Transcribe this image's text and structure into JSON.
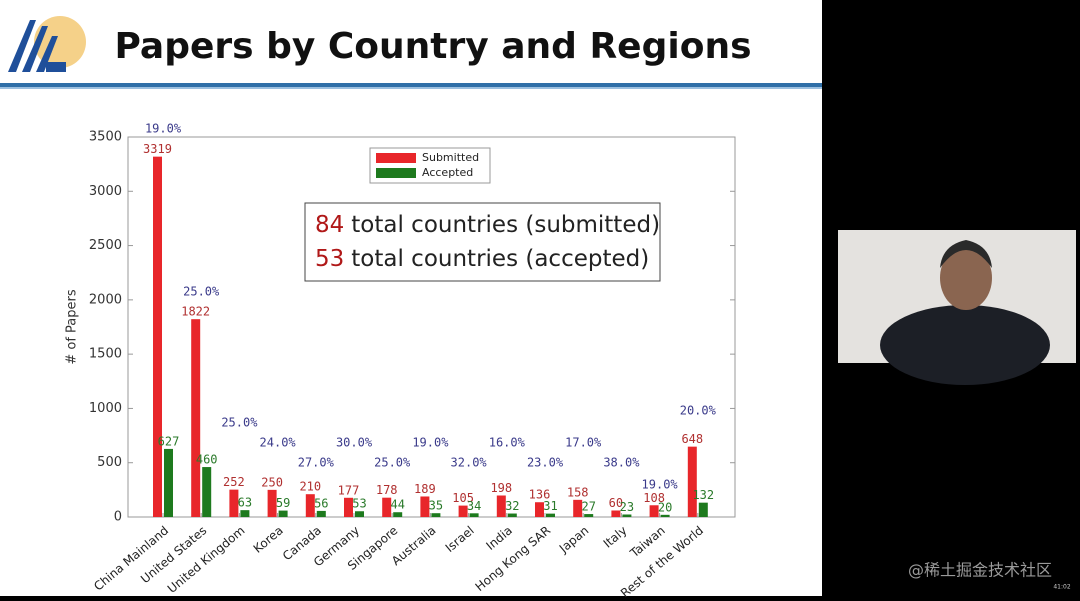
{
  "chart_data": {
    "type": "bar",
    "title": "Papers by Country and Regions",
    "y_label": "# of Papers",
    "categories": [
      "China Mainland",
      "United States",
      "United Kingdom",
      "Korea",
      "Canada",
      "Germany",
      "Singapore",
      "Australia",
      "Israel",
      "India",
      "Hong Kong SAR",
      "Japan",
      "Italy",
      "Taiwan",
      "Rest of the World"
    ],
    "series": [
      {
        "name": "Submitted",
        "color": "#e8262a",
        "label_color": "#b03030",
        "values": [
          3319,
          1822,
          252,
          250,
          210,
          177,
          178,
          189,
          105,
          198,
          136,
          158,
          60,
          108,
          648
        ]
      },
      {
        "name": "Accepted",
        "color": "#1e7a1e",
        "label_color": "#2a7a2a",
        "values": [
          627,
          460,
          63,
          59,
          56,
          53,
          44,
          35,
          34,
          32,
          31,
          27,
          23,
          20,
          132
        ]
      }
    ],
    "acceptance_rate": {
      "color": "#3a3a8a",
      "values": [
        19,
        25,
        25,
        24,
        27,
        30,
        25,
        19,
        32,
        16,
        23,
        17,
        38,
        19,
        20
      ],
      "value_labels": [
        "19.0%",
        "25.0%",
        "25.0%",
        "24.0%",
        "27.0%",
        "30.0%",
        "25.0%",
        "19.0%",
        "32.0%",
        "16.0%",
        "23.0%",
        "17.0%",
        "38.0%",
        "19.0%",
        "20.0%"
      ]
    },
    "annotations": [
      {
        "count": 84,
        "text": "total countries (submitted)"
      },
      {
        "count": 53,
        "text": "total countries (accepted)"
      }
    ],
    "ylim": [
      0,
      3500
    ],
    "yticks": [
      0,
      500,
      1000,
      1500,
      2000,
      2500,
      3000,
      3500
    ],
    "legend": "top-center"
  },
  "watermark": "@稀土掘金技术社区",
  "timestamp": "41:02"
}
